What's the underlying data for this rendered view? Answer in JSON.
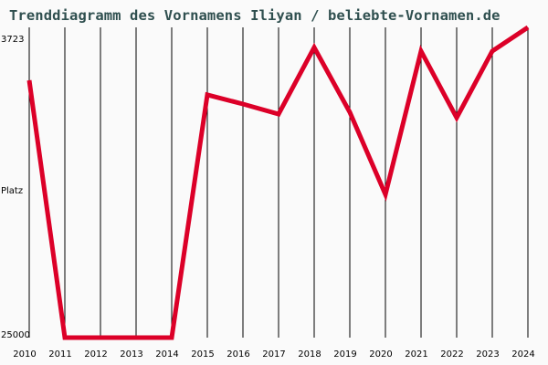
{
  "title": "Trenddiagramm des Vornamens Iliyan / beliebte-Vornamen.de",
  "colors": {
    "background": "#fafafa",
    "title": "#2f4f4f",
    "line": "#dc0028",
    "grid": "#000000"
  },
  "y_axis": {
    "top_label": "3723",
    "middle_label": "Platz",
    "bottom_label": "25000"
  },
  "chart_data": {
    "type": "line",
    "title": "Trenddiagramm des Vornamens Iliyan / beliebte-Vornamen.de",
    "xlabel": "",
    "ylabel": "Platz",
    "categories": [
      "2010",
      "2011",
      "2012",
      "2013",
      "2014",
      "2015",
      "2016",
      "2017",
      "2018",
      "2019",
      "2020",
      "2021",
      "2022",
      "2023",
      "2024"
    ],
    "series": [
      {
        "name": "Iliyan",
        "values": [
          7350,
          25000,
          25000,
          25000,
          25000,
          8350,
          8980,
          9670,
          5100,
          9540,
          15180,
          5350,
          9920,
          5350,
          3723
        ]
      }
    ],
    "ylim": [
      25000,
      3723
    ],
    "y_inverted": true,
    "grid": "vertical lines at each year",
    "legend": "none"
  }
}
